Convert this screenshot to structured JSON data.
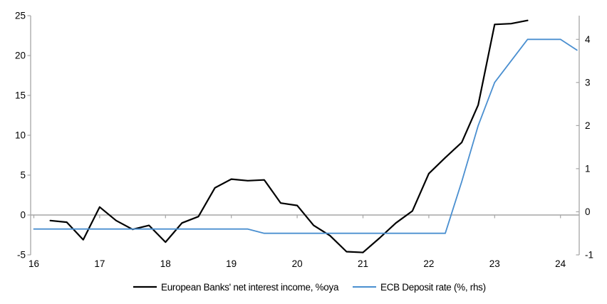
{
  "chart_data": {
    "type": "line",
    "title": "",
    "grid": "zero-line-only",
    "legend_position": "bottom-center",
    "x_tick_labels": [
      "16",
      "17",
      "18",
      "19",
      "20",
      "21",
      "22",
      "23",
      "24"
    ],
    "x_tick_values": [
      16,
      17,
      18,
      19,
      20,
      21,
      22,
      23,
      24
    ],
    "left_axis": {
      "ticks": [
        25,
        20,
        15,
        10,
        5,
        0,
        -5
      ],
      "range": [
        -5,
        25
      ]
    },
    "right_axis": {
      "ticks": [
        4,
        3,
        2,
        1,
        0,
        -1
      ],
      "range": [
        -1,
        4.55
      ]
    },
    "series": [
      {
        "name": "European Banks' net interest income, %oya",
        "axis": "left",
        "color": "#000000",
        "width": 2.2,
        "x": [
          16.25,
          16.5,
          16.75,
          17.0,
          17.25,
          17.5,
          17.75,
          18.0,
          18.25,
          18.5,
          18.75,
          19.0,
          19.25,
          19.5,
          19.75,
          20.0,
          20.25,
          20.5,
          20.75,
          21.0,
          21.25,
          21.5,
          21.75,
          22.0,
          22.25,
          22.5,
          22.75,
          23.0,
          23.25,
          23.5
        ],
        "values": [
          -0.7,
          -0.9,
          -3.1,
          1.0,
          -0.7,
          -1.8,
          -1.3,
          -3.4,
          -1.0,
          -0.2,
          3.4,
          4.5,
          4.3,
          4.4,
          1.5,
          1.2,
          -1.3,
          -2.6,
          -4.6,
          -4.7,
          -2.9,
          -1.0,
          0.5,
          5.2,
          7.2,
          9.1,
          13.8,
          23.9,
          24.0,
          24.4
        ]
      },
      {
        "name": "ECB Deposit rate (%, rhs)",
        "axis": "right",
        "color": "#4a8fd0",
        "width": 1.8,
        "x": [
          16.0,
          16.25,
          16.5,
          16.75,
          17.0,
          17.25,
          17.5,
          17.75,
          18.0,
          18.25,
          18.5,
          18.75,
          19.0,
          19.25,
          19.5,
          19.75,
          20.0,
          20.25,
          20.5,
          20.75,
          21.0,
          21.25,
          21.5,
          21.75,
          22.0,
          22.25,
          22.5,
          22.75,
          23.0,
          23.25,
          23.5,
          23.75,
          24.0,
          24.25
        ],
        "values": [
          -0.4,
          -0.4,
          -0.4,
          -0.4,
          -0.4,
          -0.4,
          -0.4,
          -0.4,
          -0.4,
          -0.4,
          -0.4,
          -0.4,
          -0.4,
          -0.4,
          -0.5,
          -0.5,
          -0.5,
          -0.5,
          -0.5,
          -0.5,
          -0.5,
          -0.5,
          -0.5,
          -0.5,
          -0.5,
          -0.5,
          0.7,
          2.0,
          3.0,
          3.5,
          4.0,
          4.0,
          4.0,
          3.75
        ]
      }
    ]
  },
  "colors": {
    "axis": "#a6a6a6",
    "zero_line": "#a6a6a6",
    "background": "#ffffff",
    "text": "#000000"
  }
}
